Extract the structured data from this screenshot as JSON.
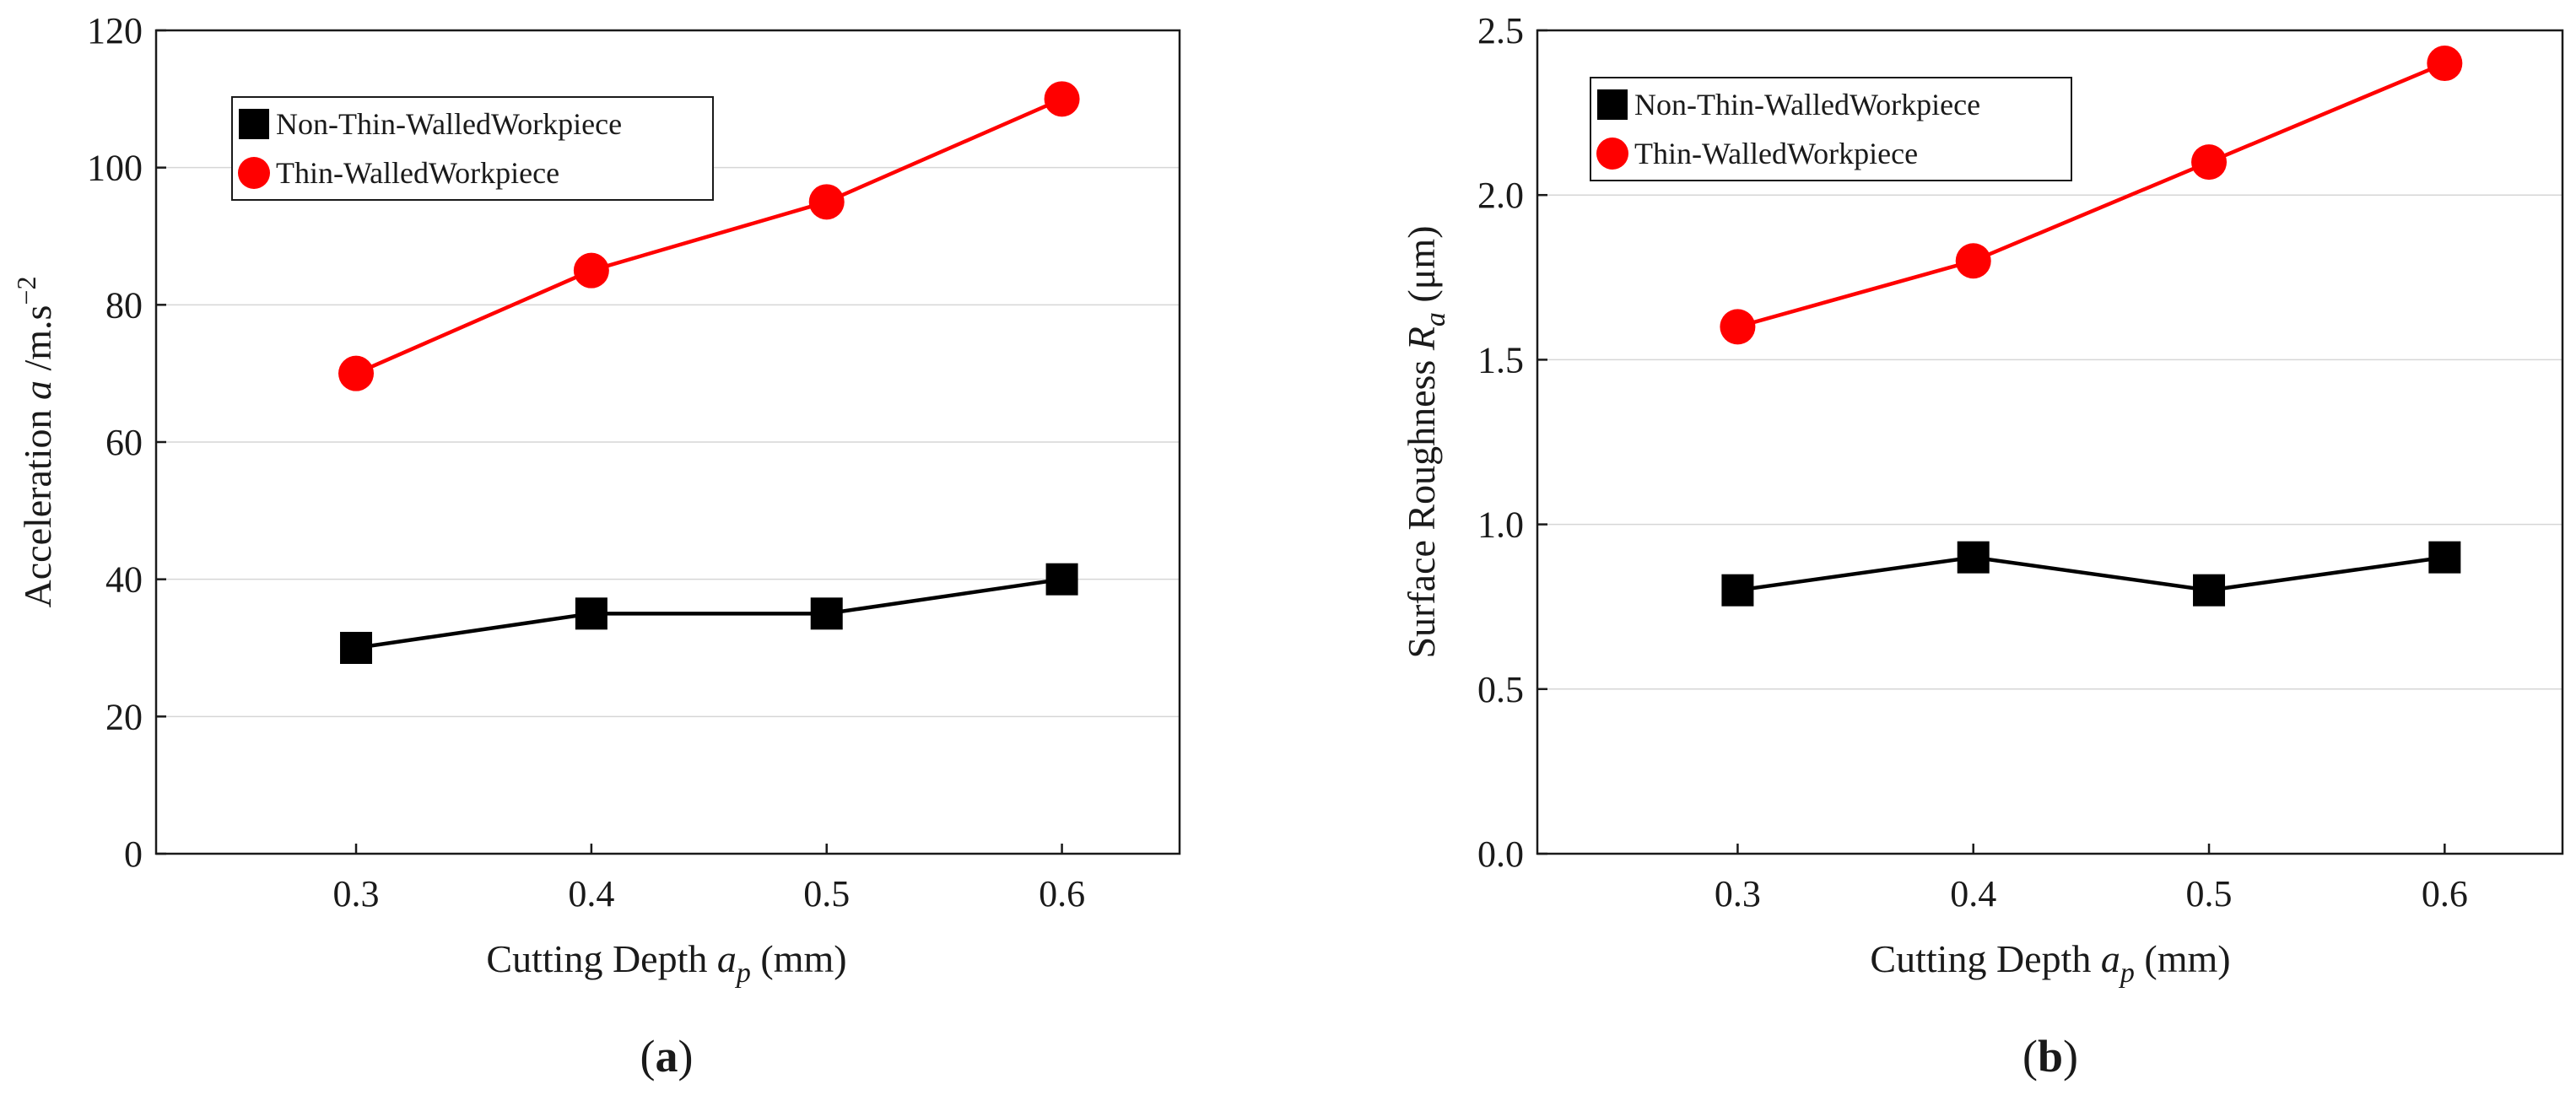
{
  "chart_data": [
    {
      "type": "line",
      "panel_label": "a",
      "x": [
        0.3,
        0.4,
        0.5,
        0.6
      ],
      "xticks": [
        "0.3",
        "0.4",
        "0.5",
        "0.6"
      ],
      "xlim": [
        0.215,
        0.65
      ],
      "yticks": [
        "0",
        "20",
        "40",
        "60",
        "80",
        "100",
        "120"
      ],
      "ylim": [
        0,
        120
      ],
      "ytick_values": [
        0,
        20,
        40,
        60,
        80,
        100,
        120
      ],
      "xlabel": {
        "main": "Cutting Depth ",
        "var": "a",
        "sub": "p",
        "unit": " (mm)"
      },
      "ylabel": {
        "main": "Acceleration ",
        "var": "a",
        "unit": " /m.s",
        "sup": "−2"
      },
      "grid": "horizontal",
      "legend_position": "top-left",
      "series": [
        {
          "name": "Non-Thin-WalledWorkpiece",
          "marker": "square",
          "color": "#000000",
          "values": [
            30,
            35,
            35,
            40
          ]
        },
        {
          "name": "Thin-WalledWorkpiece",
          "marker": "circle",
          "color": "#ff0000",
          "values": [
            70,
            85,
            95,
            110
          ]
        }
      ]
    },
    {
      "type": "line",
      "panel_label": "b",
      "x": [
        0.3,
        0.4,
        0.5,
        0.6
      ],
      "xticks": [
        "0.3",
        "0.4",
        "0.5",
        "0.6"
      ],
      "xlim": [
        0.215,
        0.65
      ],
      "yticks": [
        "0.0",
        "0.5",
        "1.0",
        "1.5",
        "2.0",
        "2.5"
      ],
      "ylim": [
        0,
        2.5
      ],
      "ytick_values": [
        0,
        0.5,
        1.0,
        1.5,
        2.0,
        2.5
      ],
      "xlabel": {
        "main": "Cutting Depth ",
        "var": "a",
        "sub": "p",
        "unit": " (mm)"
      },
      "ylabel": {
        "main": "Surface Roughness ",
        "var": "R",
        "sub": "a",
        "unit": " (μm)"
      },
      "grid": "horizontal",
      "legend_position": "top-left",
      "series": [
        {
          "name": "Non-Thin-WalledWorkpiece",
          "marker": "square",
          "color": "#000000",
          "values": [
            0.8,
            0.9,
            0.8,
            0.9
          ]
        },
        {
          "name": "Thin-WalledWorkpiece",
          "marker": "circle",
          "color": "#ff0000",
          "values": [
            1.6,
            1.8,
            2.1,
            2.4
          ]
        }
      ]
    }
  ]
}
